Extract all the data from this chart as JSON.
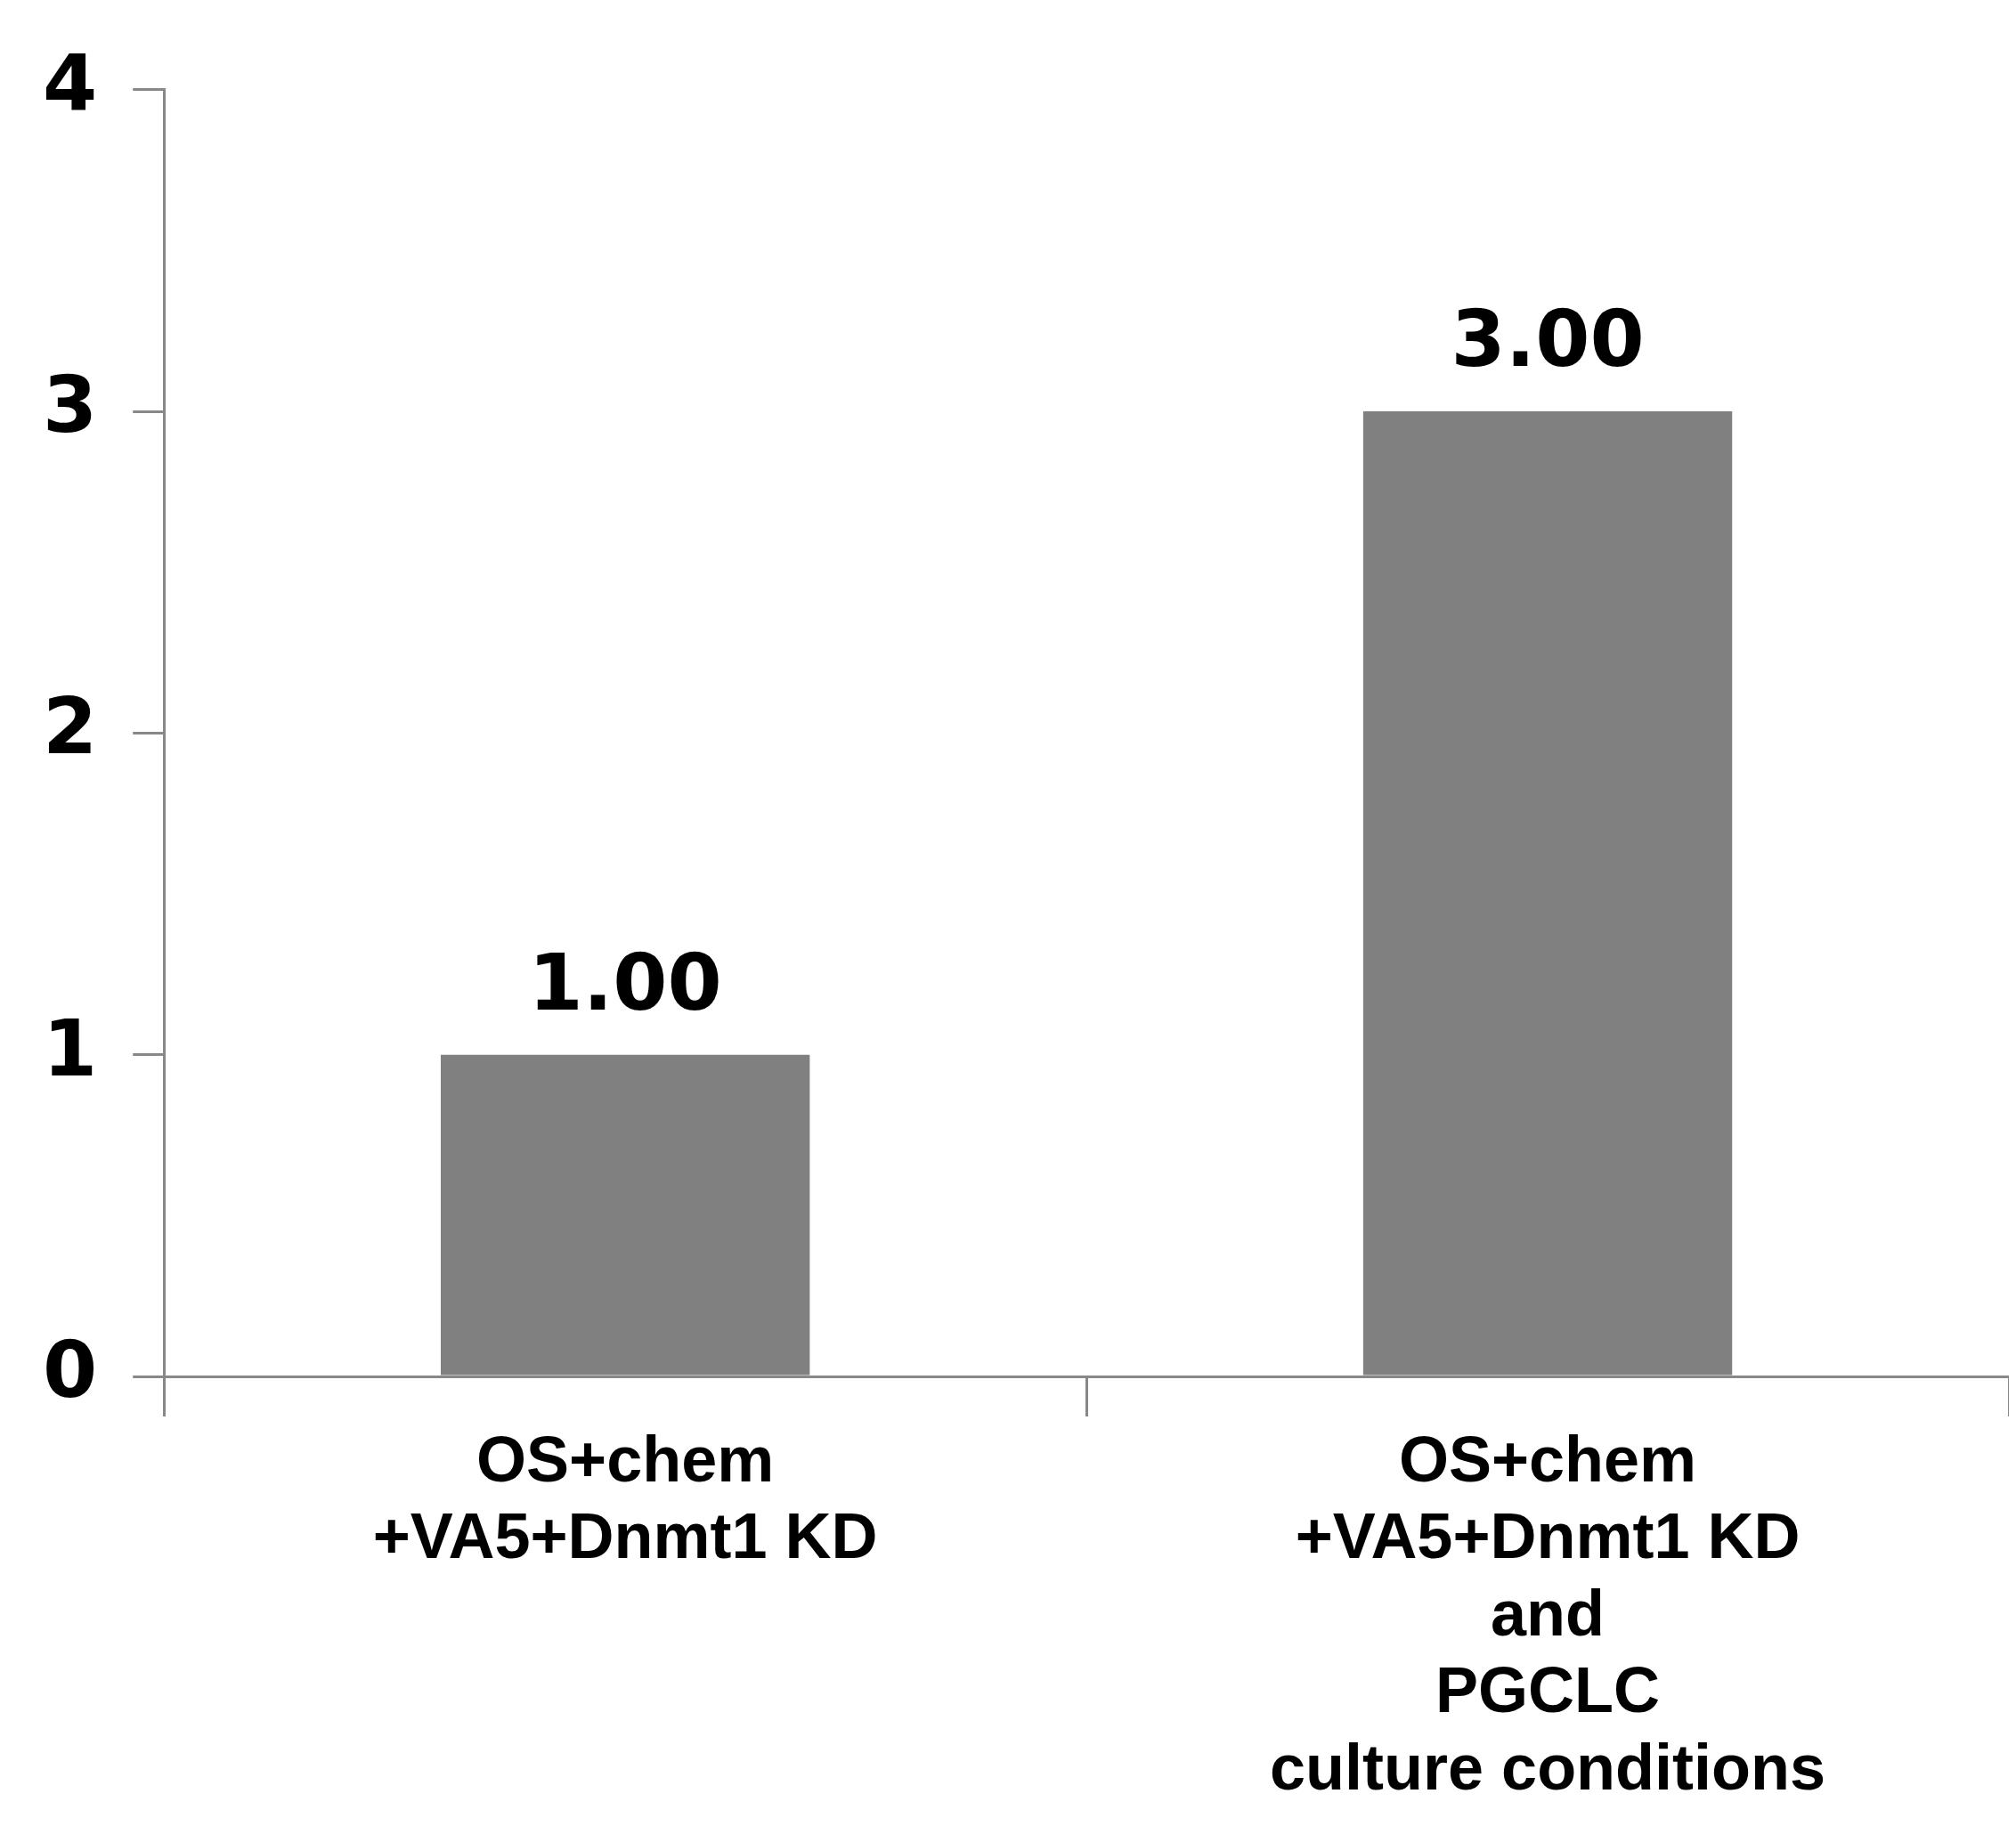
{
  "chart_data": {
    "type": "bar",
    "categories": [
      "OS+chem\n+VA5+Dnmt1 KD",
      "OS+chem\n+VA5+Dnmt1 KD\nand\nPGCLC\nculture conditions"
    ],
    "values": [
      1,
      3
    ],
    "color": "#808080",
    "value_labels": [
      "1.00",
      "3.00"
    ],
    "ylim": [
      0,
      4
    ],
    "yticks": [
      0,
      1,
      2,
      3,
      4
    ],
    "grid": false,
    "legend": false
  }
}
